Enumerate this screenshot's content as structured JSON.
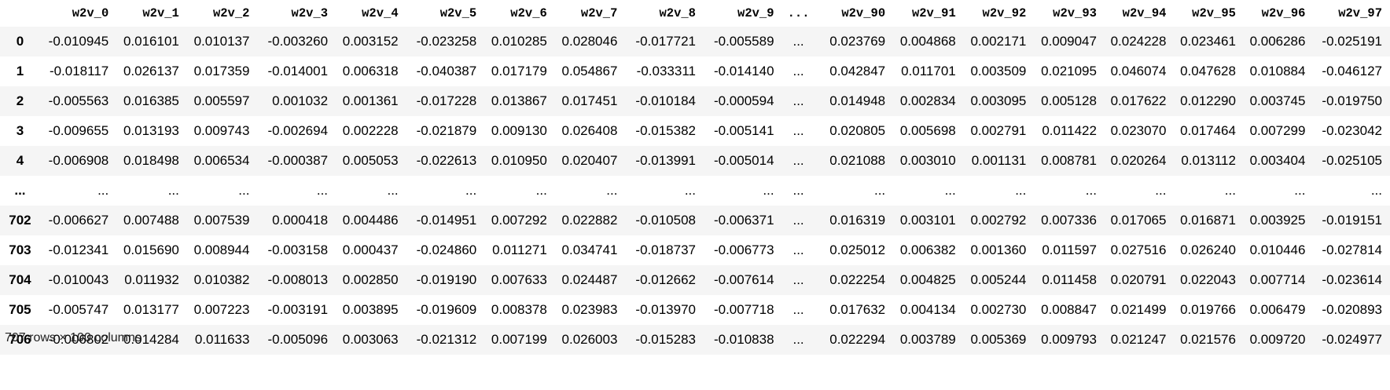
{
  "table": {
    "columns": [
      "w2v_0",
      "w2v_1",
      "w2v_2",
      "w2v_3",
      "w2v_4",
      "w2v_5",
      "w2v_6",
      "w2v_7",
      "w2v_8",
      "w2v_9",
      "...",
      "w2v_90",
      "w2v_91",
      "w2v_92",
      "w2v_93",
      "w2v_94",
      "w2v_95",
      "w2v_96",
      "w2v_97"
    ],
    "rows": [
      {
        "index": "0",
        "cells": [
          "-0.010945",
          "0.016101",
          "0.010137",
          "-0.003260",
          "0.003152",
          "-0.023258",
          "0.010285",
          "0.028046",
          "-0.017721",
          "-0.005589",
          "...",
          "0.023769",
          "0.004868",
          "0.002171",
          "0.009047",
          "0.024228",
          "0.023461",
          "0.006286",
          "-0.025191"
        ]
      },
      {
        "index": "1",
        "cells": [
          "-0.018117",
          "0.026137",
          "0.017359",
          "-0.014001",
          "0.006318",
          "-0.040387",
          "0.017179",
          "0.054867",
          "-0.033311",
          "-0.014140",
          "...",
          "0.042847",
          "0.011701",
          "0.003509",
          "0.021095",
          "0.046074",
          "0.047628",
          "0.010884",
          "-0.046127"
        ]
      },
      {
        "index": "2",
        "cells": [
          "-0.005563",
          "0.016385",
          "0.005597",
          "0.001032",
          "0.001361",
          "-0.017228",
          "0.013867",
          "0.017451",
          "-0.010184",
          "-0.000594",
          "...",
          "0.014948",
          "0.002834",
          "0.003095",
          "0.005128",
          "0.017622",
          "0.012290",
          "0.003745",
          "-0.019750"
        ]
      },
      {
        "index": "3",
        "cells": [
          "-0.009655",
          "0.013193",
          "0.009743",
          "-0.002694",
          "0.002228",
          "-0.021879",
          "0.009130",
          "0.026408",
          "-0.015382",
          "-0.005141",
          "...",
          "0.020805",
          "0.005698",
          "0.002791",
          "0.011422",
          "0.023070",
          "0.017464",
          "0.007299",
          "-0.023042"
        ]
      },
      {
        "index": "4",
        "cells": [
          "-0.006908",
          "0.018498",
          "0.006534",
          "-0.000387",
          "0.005053",
          "-0.022613",
          "0.010950",
          "0.020407",
          "-0.013991",
          "-0.005014",
          "...",
          "0.021088",
          "0.003010",
          "0.001131",
          "0.008781",
          "0.020264",
          "0.013112",
          "0.003404",
          "-0.025105"
        ]
      },
      {
        "index": "...",
        "cells": [
          "...",
          "...",
          "...",
          "...",
          "...",
          "...",
          "...",
          "...",
          "...",
          "...",
          "...",
          "...",
          "...",
          "...",
          "...",
          "...",
          "...",
          "...",
          "..."
        ]
      },
      {
        "index": "702",
        "cells": [
          "-0.006627",
          "0.007488",
          "0.007539",
          "0.000418",
          "0.004486",
          "-0.014951",
          "0.007292",
          "0.022882",
          "-0.010508",
          "-0.006371",
          "...",
          "0.016319",
          "0.003101",
          "0.002792",
          "0.007336",
          "0.017065",
          "0.016871",
          "0.003925",
          "-0.019151"
        ]
      },
      {
        "index": "703",
        "cells": [
          "-0.012341",
          "0.015690",
          "0.008944",
          "-0.003158",
          "0.000437",
          "-0.024860",
          "0.011271",
          "0.034741",
          "-0.018737",
          "-0.006773",
          "...",
          "0.025012",
          "0.006382",
          "0.001360",
          "0.011597",
          "0.027516",
          "0.026240",
          "0.010446",
          "-0.027814"
        ]
      },
      {
        "index": "704",
        "cells": [
          "-0.010043",
          "0.011932",
          "0.010382",
          "-0.008013",
          "0.002850",
          "-0.019190",
          "0.007633",
          "0.024487",
          "-0.012662",
          "-0.007614",
          "...",
          "0.022254",
          "0.004825",
          "0.005244",
          "0.011458",
          "0.020791",
          "0.022043",
          "0.007714",
          "-0.023614"
        ]
      },
      {
        "index": "705",
        "cells": [
          "-0.005747",
          "0.013177",
          "0.007223",
          "-0.003191",
          "0.003895",
          "-0.019609",
          "0.008378",
          "0.023983",
          "-0.013970",
          "-0.007718",
          "...",
          "0.017632",
          "0.004134",
          "0.002730",
          "0.008847",
          "0.021499",
          "0.019766",
          "0.006479",
          "-0.020893"
        ]
      },
      {
        "index": "706",
        "cells": [
          "-0.006802",
          "0.014284",
          "0.011633",
          "-0.005096",
          "0.003063",
          "-0.021312",
          "0.007199",
          "0.026003",
          "-0.015283",
          "-0.010838",
          "...",
          "0.022294",
          "0.003789",
          "0.005369",
          "0.009793",
          "0.021247",
          "0.021576",
          "0.009720",
          "-0.024977"
        ]
      }
    ]
  },
  "footer": {
    "shape_text": "707 rows × 100 columns"
  }
}
